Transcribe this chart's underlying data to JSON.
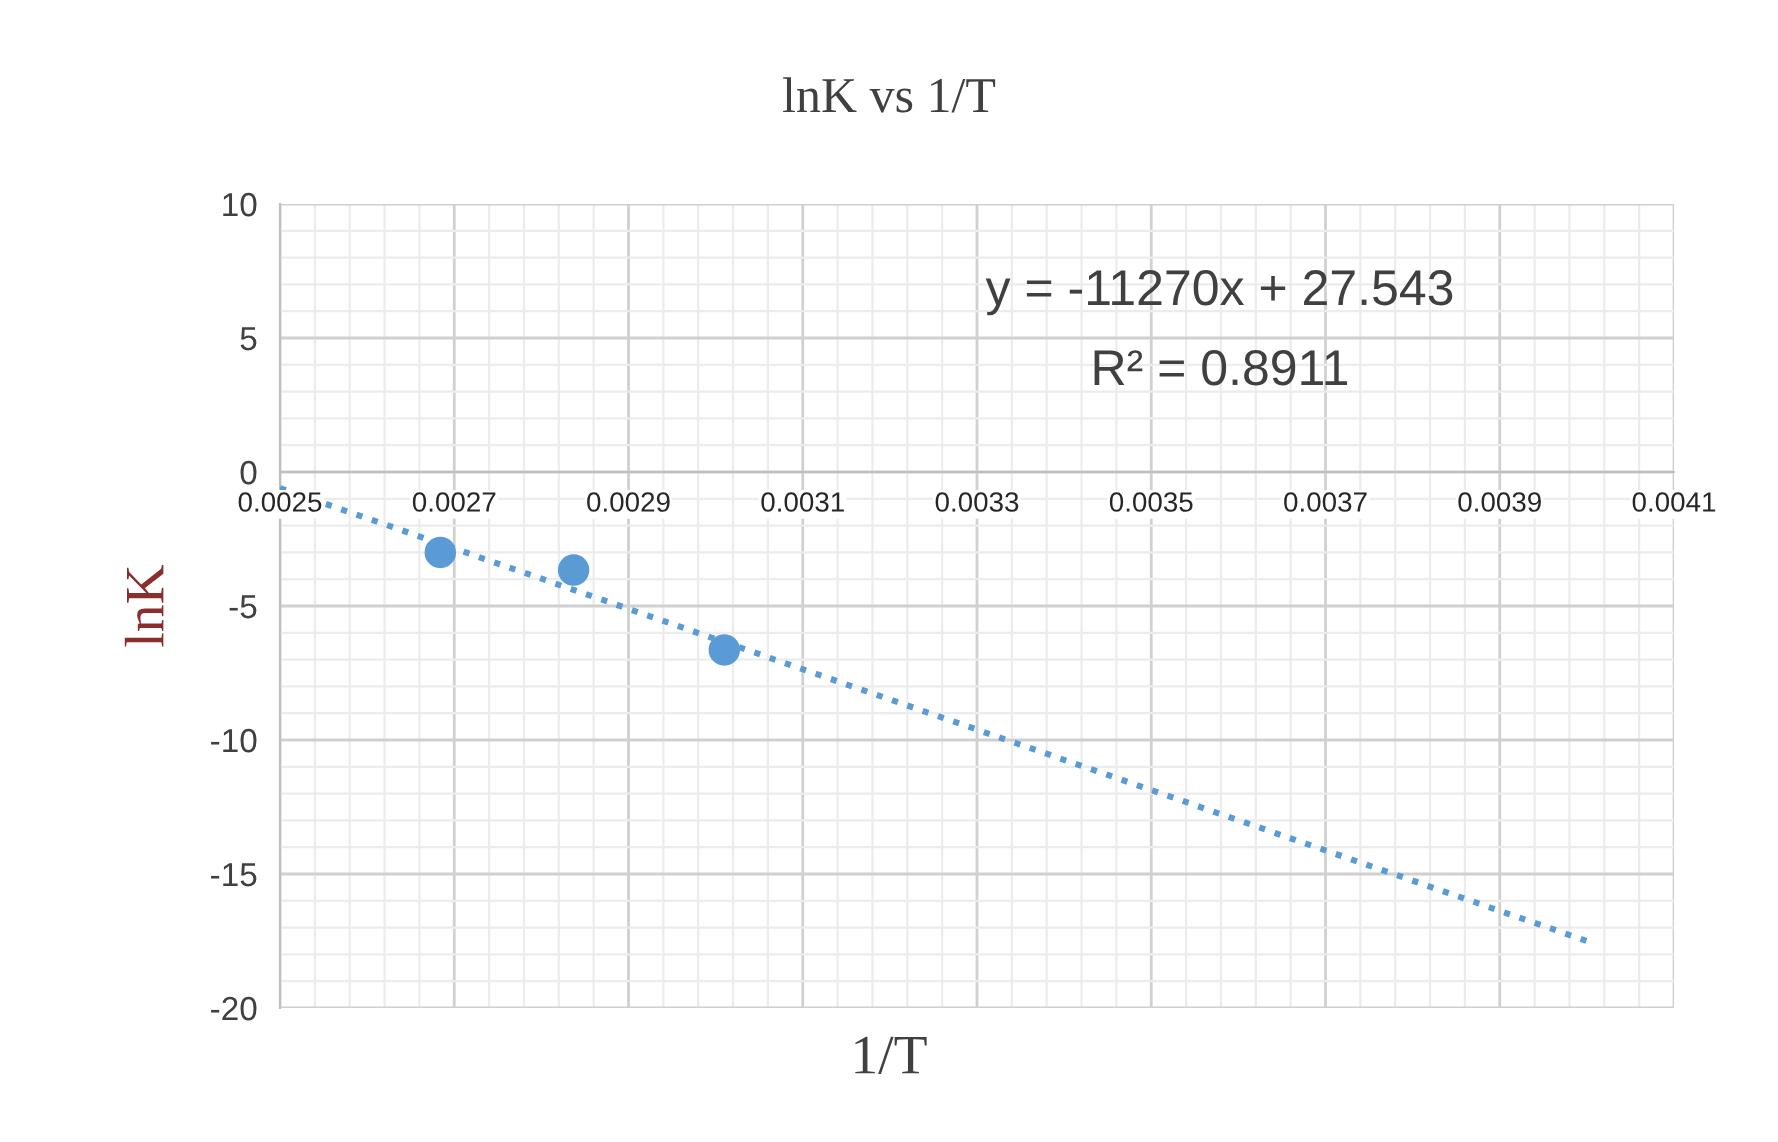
{
  "chart_data": {
    "type": "scatter",
    "title": "lnK vs 1/T",
    "xlabel": "1/T",
    "ylabel": "lnK",
    "series": [
      {
        "color": "#5b9bd5",
        "x": [
          0.002684,
          0.002837,
          0.00301
        ],
        "values": [
          -3.0,
          -3.66,
          -6.64
        ],
        "marker": "circle"
      },
      {
        "type": "line",
        "color": "#5b9bd5",
        "x": [
          0.0025,
          0.004
        ],
        "values": [
          -0.6,
          -17.5
        ],
        "line_style": "dotted",
        "marker": "none"
      }
    ],
    "xlim": [
      0.0025,
      0.0041
    ],
    "xticks": [
      0.0025,
      0.0027,
      0.0029,
      0.0031,
      0.0033,
      0.0035,
      0.0037,
      0.0039,
      0.0041
    ],
    "ylim": [
      -20,
      10
    ],
    "yticks": [
      -20,
      -15,
      -10,
      -5,
      0,
      5,
      10
    ],
    "grid": true,
    "legend": false,
    "annotations": [
      "y = -11270x + 27.543",
      "R² = 0.8911"
    ]
  }
}
